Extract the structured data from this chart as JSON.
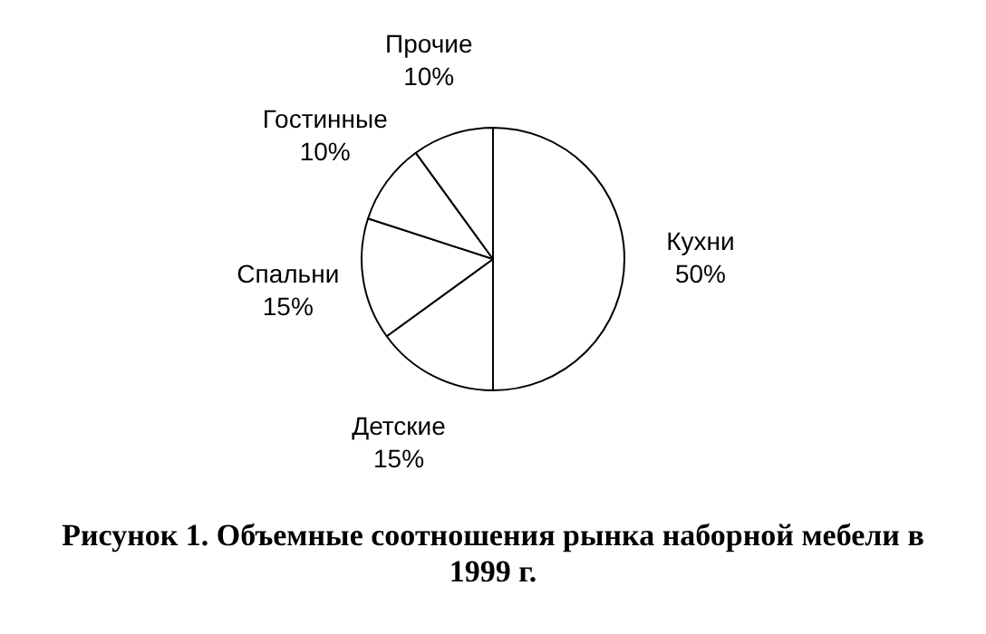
{
  "chart_data": {
    "type": "pie",
    "categories": [
      "Кухни",
      "Детские",
      "Спальни",
      "Гостинные",
      "Прочие"
    ],
    "values": [
      50,
      15,
      15,
      10,
      10
    ],
    "value_labels": [
      "50%",
      "15%",
      "15%",
      "10%",
      "10%"
    ],
    "colors": [
      "#ffffff",
      "#ffffff",
      "#ffffff",
      "#ffffff",
      "#ffffff"
    ],
    "annotations": [
      "Рисунок 1. Объемные соотношения рынка наборной мебели в 1999 г."
    ],
    "legend": false
  }
}
